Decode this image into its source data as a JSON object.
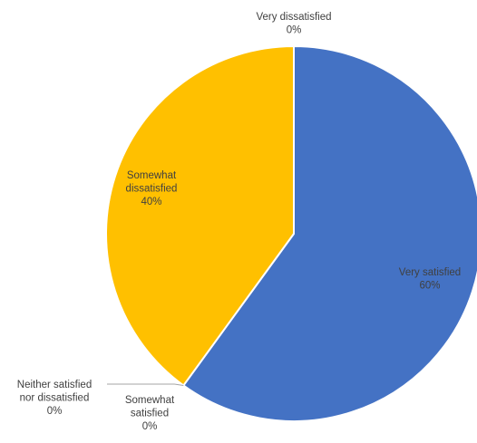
{
  "chart_data": {
    "type": "pie",
    "title": "",
    "series": [
      {
        "values": [
          60,
          0,
          0,
          40,
          0
        ]
      }
    ],
    "categories": [
      "Very satisfied",
      "Somewhat satisfied",
      "Neither satisfied nor dissatisfied",
      "Somewhat dissatisfied",
      "Very dissatisfied"
    ],
    "colors": [
      "#4472c4",
      "#ed7d31",
      "#a5a5a5",
      "#ffc000",
      "#5b9bd5"
    ],
    "data_labels": [
      {
        "name_lines": [
          "Very satisfied"
        ],
        "value_text": "60%"
      },
      {
        "name_lines": [
          "Somewhat",
          "satisfied"
        ],
        "value_text": "0%"
      },
      {
        "name_lines": [
          "Neither satisfied",
          "nor dissatisfied"
        ],
        "value_text": "0%"
      },
      {
        "name_lines": [
          "Somewhat",
          "dissatisfied"
        ],
        "value_text": "40%"
      },
      {
        "name_lines": [
          "Very dissatisfied"
        ],
        "value_text": "0%"
      }
    ],
    "legend": "none",
    "start_angle": "12 o'clock",
    "direction": "clockwise"
  }
}
